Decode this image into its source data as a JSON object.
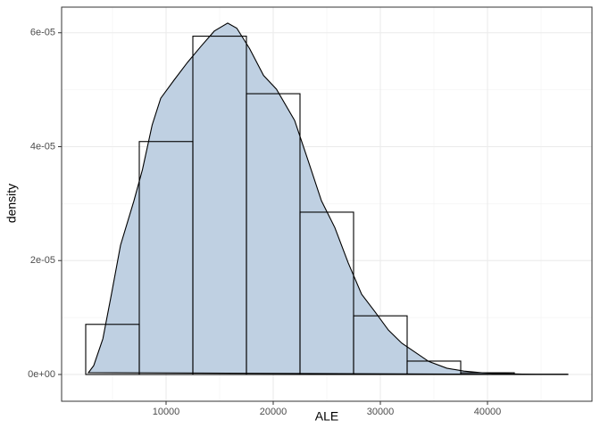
{
  "chart_data": {
    "type": "histogram",
    "xlabel": "ALE",
    "ylabel": "density",
    "bins": [
      2500,
      7500,
      12500,
      17500,
      22500,
      27500,
      32500,
      37500,
      42500,
      47500
    ],
    "values": [
      8.8e-06,
      4.09e-05,
      5.94e-05,
      4.93e-05,
      2.85e-05,
      1.03e-05,
      2.35e-06,
      3e-07,
      5e-08
    ],
    "bar_color": "#000000",
    "density": {
      "color": "#bfd0e2",
      "x": [
        2750,
        3250,
        4100,
        4900,
        5750,
        7000,
        7800,
        8700,
        9500,
        10750,
        12000,
        13250,
        14500,
        15750,
        16600,
        17800,
        19100,
        20300,
        22000,
        23250,
        24500,
        25750,
        27000,
        28250,
        29500,
        30750,
        32000,
        33250,
        34500,
        36200,
        37800,
        39500,
        41200,
        44500,
        47500
      ],
      "values": [
        3.1e-07,
        1.57e-06,
        6.26e-06,
        1.409e-05,
        2.27e-05,
        3.05e-05,
        3.6e-05,
        4.38e-05,
        4.85e-05,
        5.17e-05,
        5.48e-05,
        5.76e-05,
        6.03e-05,
        6.17e-05,
        6.08e-05,
        5.72e-05,
        5.25e-05,
        5.01e-05,
        4.46e-05,
        3.76e-05,
        3.05e-05,
        2.58e-05,
        1.96e-05,
        1.41e-05,
        1.1e-05,
        7.8e-06,
        5.5e-06,
        3.9e-06,
        2.3e-06,
        1.1e-06,
        6e-07,
        3e-07,
        1.6e-07,
        0,
        0
      ]
    },
    "xlim": [
      250,
      49750
    ],
    "ylim": [
      -4.7e-06,
      6.45e-05
    ],
    "xticks": [
      10000,
      20000,
      30000,
      40000
    ],
    "x_minor_ticks": [
      5000,
      15000,
      25000,
      35000,
      45000
    ],
    "yticks": [
      {
        "value": 0,
        "label": "0e+00"
      },
      {
        "value": 2e-05,
        "label": "2e-05"
      },
      {
        "value": 4e-05,
        "label": "4e-05"
      },
      {
        "value": 6e-05,
        "label": "6e-05"
      }
    ],
    "y_minor_ticks": [
      1e-05,
      3e-05,
      5e-05
    ],
    "grid": true
  }
}
